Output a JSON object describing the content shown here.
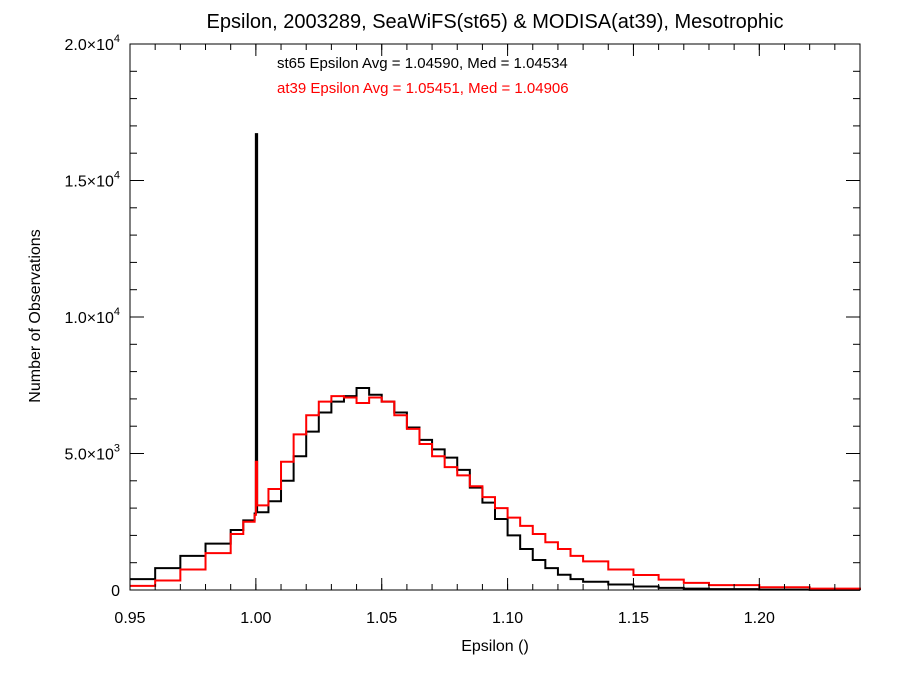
{
  "chart_data": {
    "type": "line",
    "title": "Epsilon, 2003289, SeaWiFS(st65) & MODISA(at39), Mesotrophic",
    "xlabel": "Epsilon ()",
    "ylabel": "Number of Observations",
    "xlim": [
      0.95,
      1.24
    ],
    "ylim": [
      0,
      20000
    ],
    "xticks": [
      0.95,
      1.0,
      1.05,
      1.1,
      1.15,
      1.2
    ],
    "xtick_labels": [
      "0.95",
      "1.00",
      "1.05",
      "1.10",
      "1.15",
      "1.20"
    ],
    "yticks": [
      0,
      5000,
      10000,
      15000,
      20000
    ],
    "ytick_labels": [
      {
        "mant": "0",
        "exp": ""
      },
      {
        "mant": "5.0×10",
        "exp": "3"
      },
      {
        "mant": "1.0×10",
        "exp": "4"
      },
      {
        "mant": "1.5×10",
        "exp": "4"
      },
      {
        "mant": "2.0×10",
        "exp": "4"
      }
    ],
    "annotations": [
      {
        "text": "st65 Epsilon Avg = 1.04590, Med = 1.04534",
        "color": "#000000"
      },
      {
        "text": "at39 Epsilon Avg = 1.05451, Med = 1.04906",
        "color": "#ff0000"
      }
    ],
    "grid": false,
    "series": [
      {
        "color": "#000000",
        "x": [
          0.95,
          0.96,
          0.97,
          0.98,
          0.99,
          0.995,
          0.9995,
          1.0,
          1.0005,
          1.005,
          1.01,
          1.015,
          1.02,
          1.025,
          1.03,
          1.035,
          1.04,
          1.045,
          1.05,
          1.055,
          1.06,
          1.065,
          1.07,
          1.075,
          1.08,
          1.085,
          1.09,
          1.095,
          1.1,
          1.105,
          1.11,
          1.115,
          1.12,
          1.125,
          1.13,
          1.14,
          1.15,
          1.16,
          1.17,
          1.18,
          1.2,
          1.22,
          1.24
        ],
        "y": [
          400,
          800,
          1250,
          1700,
          2200,
          2550,
          2800,
          16700,
          2850,
          3250,
          4000,
          4900,
          5800,
          6500,
          6900,
          7100,
          7400,
          7150,
          6900,
          6500,
          5950,
          5500,
          5150,
          4850,
          4400,
          3750,
          3200,
          2600,
          2000,
          1500,
          1100,
          800,
          560,
          400,
          300,
          200,
          130,
          80,
          50,
          30,
          15,
          5,
          0
        ]
      },
      {
        "color": "#ff0000",
        "x": [
          0.95,
          0.96,
          0.97,
          0.98,
          0.99,
          0.995,
          0.9995,
          1.0,
          1.0005,
          1.005,
          1.01,
          1.015,
          1.02,
          1.025,
          1.03,
          1.035,
          1.04,
          1.045,
          1.05,
          1.055,
          1.06,
          1.065,
          1.07,
          1.075,
          1.08,
          1.085,
          1.09,
          1.095,
          1.1,
          1.105,
          1.11,
          1.115,
          1.12,
          1.125,
          1.13,
          1.14,
          1.15,
          1.16,
          1.17,
          1.18,
          1.2,
          1.22,
          1.24
        ],
        "y": [
          150,
          350,
          750,
          1350,
          2050,
          2500,
          2750,
          4700,
          3100,
          3700,
          4700,
          5700,
          6400,
          6900,
          7100,
          7050,
          6850,
          7050,
          6900,
          6400,
          5900,
          5350,
          4900,
          4500,
          4200,
          3800,
          3400,
          3000,
          2650,
          2350,
          2050,
          1750,
          1500,
          1250,
          1050,
          750,
          550,
          380,
          260,
          180,
          100,
          50,
          20
        ]
      }
    ]
  }
}
